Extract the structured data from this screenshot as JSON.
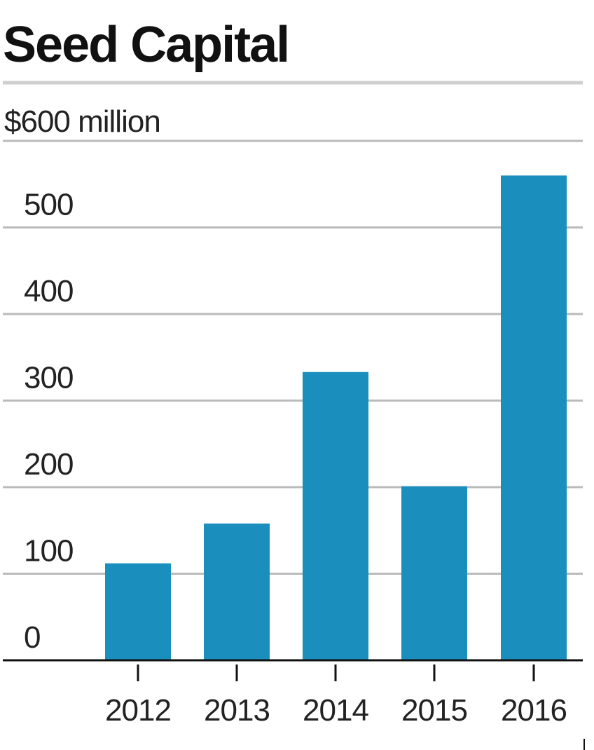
{
  "chart_data": {
    "type": "bar",
    "title": "Seed Capital",
    "unit_label": "$600 million",
    "categories": [
      "2012",
      "2013",
      "2014",
      "2015",
      "2016"
    ],
    "values": [
      112,
      158,
      333,
      201,
      560
    ],
    "ylim": [
      0,
      600
    ],
    "yticks": [
      "0",
      "100",
      "200",
      "300",
      "400",
      "500"
    ],
    "xlabel": "",
    "ylabel": "",
    "grid": true,
    "colors": {
      "bar": "#1A8FBD",
      "grid": "#BBBBBB",
      "axis": "#111111",
      "text": "#222222",
      "title": "#111111"
    }
  }
}
